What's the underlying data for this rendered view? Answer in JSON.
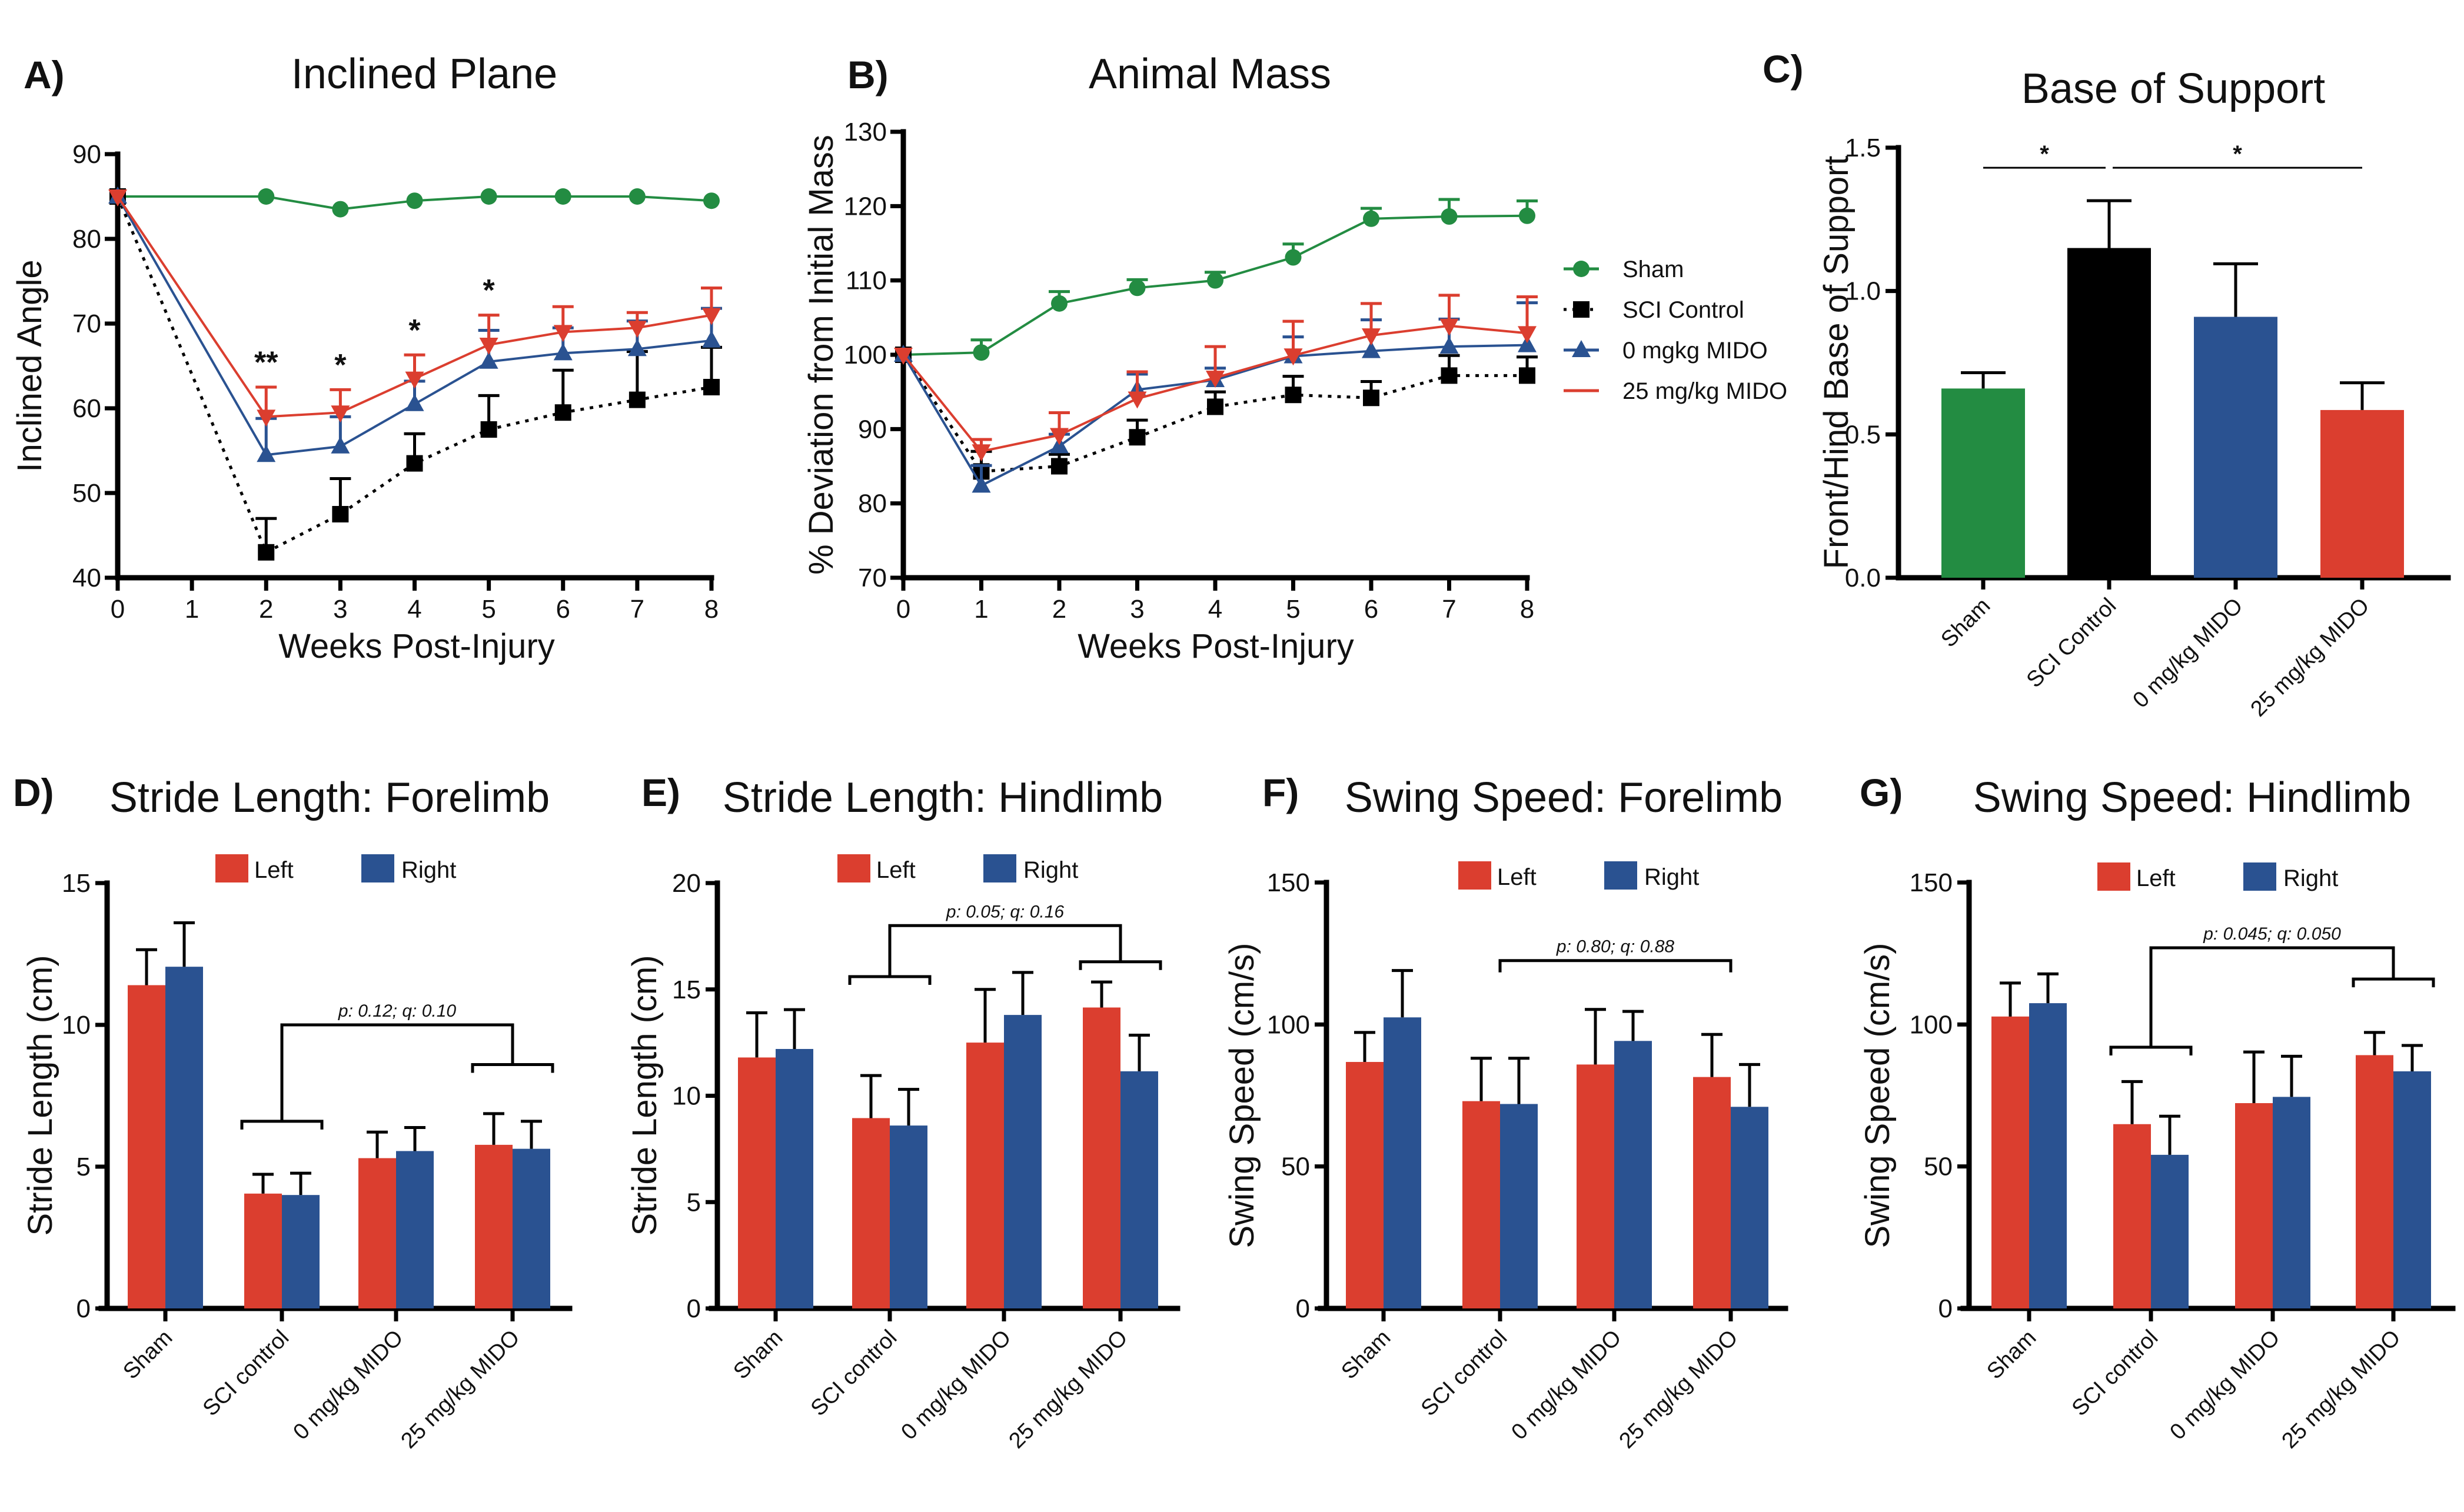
{
  "figure": {
    "colors": {
      "sham": "#238C42",
      "sci": "#000000",
      "mido0": "#2A5291",
      "mido25": "#DB3E2F",
      "left": "#DB3E2F",
      "right": "#2A5291"
    }
  },
  "chart_data": [
    {
      "id": "A",
      "letter": "A)",
      "type": "line",
      "title": "Inclined Plane",
      "xlabel": "Weeks Post-Injury",
      "ylabel": "Inclined Angle",
      "xlim": [
        0,
        8
      ],
      "ylim": [
        40,
        90
      ],
      "xticks": [
        0,
        1,
        2,
        3,
        4,
        5,
        6,
        7,
        8
      ],
      "yticks": [
        40,
        50,
        60,
        70,
        80,
        90
      ],
      "grid": false,
      "series": [
        {
          "name": "Sham",
          "key": "sham",
          "marker": "circle",
          "dash": false,
          "x": [
            0,
            2,
            3,
            4,
            5,
            6,
            7,
            8
          ],
          "y": [
            85,
            85,
            83.5,
            84.5,
            85,
            85,
            85,
            84.5
          ],
          "err_upper": [
            85,
            85,
            83.5,
            84.5,
            85,
            85,
            85,
            84.5
          ]
        },
        {
          "name": "SCI Control",
          "key": "sci",
          "marker": "square",
          "dash": true,
          "x": [
            0,
            2,
            3,
            4,
            5,
            6,
            7,
            8
          ],
          "y": [
            85,
            43,
            47.5,
            53.5,
            57.5,
            59.5,
            61,
            62.5
          ],
          "err_upper": [
            85,
            47,
            51.7,
            57,
            61.5,
            64.5,
            66.7,
            67.2
          ]
        },
        {
          "name": "0 mgkg MIDO",
          "key": "mido0",
          "marker": "triangle-up",
          "dash": false,
          "x": [
            0,
            2,
            3,
            4,
            5,
            6,
            7,
            8
          ],
          "y": [
            85,
            54.5,
            55.5,
            60.5,
            65.5,
            66.5,
            67,
            68
          ],
          "err_upper": [
            85,
            58.8,
            59,
            63.2,
            69.2,
            69.5,
            70.3,
            71.8
          ]
        },
        {
          "name": "25 mg/kg MIDO",
          "key": "mido25",
          "marker": "triangle-down",
          "dash": false,
          "x": [
            0,
            2,
            3,
            4,
            5,
            6,
            7,
            8
          ],
          "y": [
            85,
            59,
            59.5,
            63.5,
            67.5,
            69,
            69.5,
            71
          ],
          "err_upper": [
            85,
            62.5,
            62.2,
            66.3,
            71,
            72,
            71.3,
            74.2
          ]
        }
      ],
      "annotations": [
        {
          "x": 2,
          "y": 64.2,
          "text": "**"
        },
        {
          "x": 3,
          "y": 63.9,
          "text": "*"
        },
        {
          "x": 4,
          "y": 68,
          "text": "*"
        },
        {
          "x": 5,
          "y": 72.7,
          "text": "*"
        }
      ]
    },
    {
      "id": "B",
      "letter": "B)",
      "type": "line",
      "title": "Animal Mass",
      "xlabel": "Weeks Post-Injury",
      "ylabel": "% Deviation from Initial Mass",
      "xlim": [
        0,
        8
      ],
      "ylim": [
        70,
        130
      ],
      "xticks": [
        0,
        1,
        2,
        3,
        4,
        5,
        6,
        7,
        8
      ],
      "yticks": [
        70,
        80,
        90,
        100,
        110,
        120,
        130
      ],
      "grid": false,
      "legend_position": "right",
      "series": [
        {
          "name": "Sham",
          "key": "sham",
          "marker": "circle",
          "dash": false,
          "x": [
            0,
            1,
            2,
            3,
            4,
            5,
            6,
            7,
            8
          ],
          "y": [
            100,
            100.3,
            106.9,
            109,
            110,
            113.1,
            118.3,
            118.6,
            118.7
          ],
          "err_upper": [
            100,
            102,
            108.5,
            110.1,
            111.1,
            114.9,
            119.7,
            120.9,
            120.7
          ]
        },
        {
          "name": "SCI Control",
          "key": "sci",
          "marker": "square",
          "dash": true,
          "x": [
            0,
            1,
            2,
            3,
            4,
            5,
            6,
            7,
            8
          ],
          "y": [
            100,
            84.3,
            85,
            88.9,
            93,
            94.6,
            94.2,
            97.2,
            97.2
          ],
          "err_upper": [
            100,
            87,
            86.6,
            91.2,
            95,
            97.1,
            96.4,
            99.9,
            99.7
          ]
        },
        {
          "name": "0 mgkg MIDO",
          "key": "mido0",
          "marker": "triangle-up",
          "dash": false,
          "x": [
            0,
            1,
            2,
            3,
            4,
            5,
            6,
            7,
            8
          ],
          "y": [
            100,
            82.4,
            87.7,
            95.3,
            96.6,
            99.8,
            100.5,
            101.1,
            101.3
          ],
          "err_upper": [
            100,
            85.1,
            89.3,
            97.4,
            98.2,
            102.4,
            104.7,
            104.8,
            107
          ]
        },
        {
          "name": "25 mg/kg MIDO",
          "key": "mido25",
          "marker": "triangle-down",
          "dash": false,
          "x": [
            0,
            1,
            2,
            3,
            4,
            5,
            6,
            7,
            8
          ],
          "y": [
            100,
            87,
            89.2,
            94.1,
            96.9,
            99.9,
            102.6,
            103.9,
            102.9
          ],
          "err_upper": [
            100,
            88.6,
            92.2,
            97.7,
            101.1,
            104.5,
            106.9,
            108,
            107.8
          ]
        }
      ]
    },
    {
      "id": "C",
      "letter": "C)",
      "type": "bar",
      "title": "Base of Support",
      "xlabel": "",
      "ylabel": "Front/Hind Base of Support",
      "ylim": [
        0,
        1.5
      ],
      "yticks": [
        "0.0",
        "0.5",
        "1.0",
        "1.5"
      ],
      "categories": [
        "Sham",
        "SCI Control",
        "0 mg/kg MIDO",
        "25 mg/kg MIDO"
      ],
      "bar_keys": [
        "sham",
        "sci",
        "mido0",
        "mido25"
      ],
      "values": [
        0.66,
        1.15,
        0.91,
        0.585
      ],
      "err_upper": [
        0.715,
        1.315,
        1.095,
        0.68
      ],
      "significance": [
        {
          "from": 0,
          "to": 1,
          "y": 1.43,
          "text": "*"
        },
        {
          "from": 1,
          "to": 3,
          "y": 1.43,
          "text": "*"
        }
      ]
    },
    {
      "id": "D",
      "letter": "D)",
      "type": "bar",
      "title": "Stride Length: Forelimb",
      "ylabel": "Stride Length (cm)",
      "ylim": [
        0,
        15
      ],
      "yticks": [
        "0",
        "5",
        "10",
        "15"
      ],
      "categories": [
        "Sham",
        "SCI control",
        "0 mg/kg MIDO",
        "25 mg/kg MIDO"
      ],
      "legend": [
        "Left",
        "Right"
      ],
      "legend_position": "top",
      "series": [
        {
          "name": "Left",
          "key": "left",
          "values": [
            11.4,
            4.05,
            5.3,
            5.77
          ],
          "err_upper": [
            12.65,
            4.73,
            6.22,
            6.87
          ]
        },
        {
          "name": "Right",
          "key": "right",
          "values": [
            12.05,
            4.0,
            5.55,
            5.63
          ],
          "err_upper": [
            13.6,
            4.77,
            6.38,
            6.6
          ]
        }
      ],
      "comparison": {
        "text": "p: 0.12; q: 0.10",
        "groups": [
          1,
          3
        ],
        "top": 10.0,
        "sub_y": 8.6,
        "sub_y2": 6.6
      }
    },
    {
      "id": "E",
      "letter": "E)",
      "type": "bar",
      "title": "Stride Length: Hindlimb",
      "ylabel": "Stride Length (cm)",
      "ylim": [
        0,
        20
      ],
      "yticks": [
        "0",
        "5",
        "10",
        "15",
        "20"
      ],
      "categories": [
        "Sham",
        "SCI control",
        "0 mg/kg MIDO",
        "25 mg/kg MIDO"
      ],
      "legend": [
        "Left",
        "Right"
      ],
      "legend_position": "top",
      "series": [
        {
          "name": "Left",
          "key": "left",
          "values": [
            11.8,
            8.95,
            12.5,
            14.15
          ],
          "err_upper": [
            13.9,
            10.95,
            15.0,
            15.35
          ]
        },
        {
          "name": "Right",
          "key": "right",
          "values": [
            12.2,
            8.6,
            13.8,
            11.15
          ],
          "err_upper": [
            14.05,
            10.3,
            15.8,
            12.85
          ]
        }
      ],
      "comparison": {
        "text": "p: 0.05; q: 0.16",
        "groups": [
          1,
          3
        ],
        "top": 18.0,
        "sub_y": 16.3,
        "sub_y2": 15.6
      }
    },
    {
      "id": "F",
      "letter": "F)",
      "type": "bar",
      "title": "Swing Speed: Forelimb",
      "ylabel": "Swing Speed (cm/s)",
      "ylim": [
        0,
        150
      ],
      "yticks": [
        "0",
        "50",
        "100",
        "150"
      ],
      "categories": [
        "Sham",
        "SCI control",
        "0 mg/kg MIDO",
        "25 mg/kg MIDO"
      ],
      "legend": [
        "Left",
        "Right"
      ],
      "legend_position": "top",
      "series": [
        {
          "name": "Left",
          "key": "left",
          "values": [
            86.8,
            73,
            85.9,
            81.5
          ],
          "err_upper": [
            97.2,
            88.1,
            105.3,
            96.5
          ]
        },
        {
          "name": "Right",
          "key": "right",
          "values": [
            102.5,
            72,
            94.2,
            71
          ],
          "err_upper": [
            119,
            88.1,
            104.6,
            85.9
          ]
        }
      ],
      "comparison": {
        "text": "p: 0.80; q: 0.88",
        "groups": [
          1,
          3
        ],
        "top": 122.5,
        "simple": true
      }
    },
    {
      "id": "G",
      "letter": "G)",
      "type": "bar",
      "title": "Swing Speed: Hindlimb",
      "ylabel": "Swing Speed (cm/s)",
      "ylim": [
        0,
        150
      ],
      "yticks": [
        "0",
        "50",
        "100",
        "150"
      ],
      "categories": [
        "Sham",
        "SCI control",
        "0 mg/kg MIDO",
        "25 mg/kg MIDO"
      ],
      "legend": [
        "Left",
        "Right"
      ],
      "legend_position": "top",
      "series": [
        {
          "name": "Left",
          "key": "left",
          "values": [
            102.8,
            64.9,
            72.3,
            89.2
          ],
          "err_upper": [
            114.6,
            79.9,
            90.3,
            97.2
          ]
        },
        {
          "name": "Right",
          "key": "right",
          "values": [
            107.5,
            54.1,
            74.5,
            83.5
          ],
          "err_upper": [
            117.8,
            67.7,
            88.8,
            92.6
          ]
        }
      ],
      "comparison": {
        "text": "p: 0.045;  q: 0.050",
        "groups": [
          1,
          3
        ],
        "top": 127.0,
        "sub_y": 116.0,
        "sub_y2": 92.0
      }
    }
  ]
}
